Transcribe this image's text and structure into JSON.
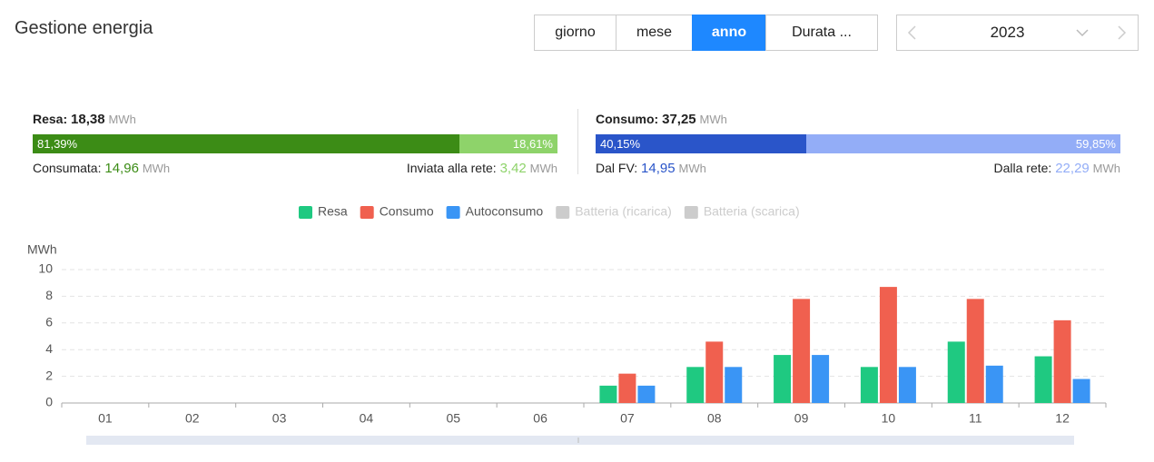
{
  "header": {
    "title": "Gestione energia",
    "tabs": [
      {
        "label": "giorno"
      },
      {
        "label": "mese"
      },
      {
        "label": "anno",
        "selected": true
      },
      {
        "label": "Durata ..."
      }
    ],
    "year": "2023"
  },
  "summary": [
    {
      "title": "Resa:",
      "amount": "18,38",
      "unit": "MWh",
      "segments": [
        {
          "value": 81.39,
          "label": "81,39%",
          "color": "#3c8c16"
        },
        {
          "value": 18.61,
          "label": "18,61%",
          "color": "#8ed36a"
        }
      ],
      "left": {
        "label": "Consumata:",
        "amount": "14,96",
        "unit": "MWh"
      },
      "right": {
        "label": "Inviata alla rete:",
        "amount": "3,42",
        "unit": "MWh"
      }
    },
    {
      "title": "Consumo:",
      "amount": "37,25",
      "unit": "MWh",
      "segments": [
        {
          "value": 40.15,
          "label": "40,15%",
          "color": "#2a55c9"
        },
        {
          "value": 59.85,
          "label": "59,85%",
          "color": "#93adf7"
        }
      ],
      "left": {
        "label": "Dal FV:",
        "amount": "14,95",
        "unit": "MWh"
      },
      "right": {
        "label": "Dalla rete:",
        "amount": "22,29",
        "unit": "MWh"
      }
    }
  ],
  "chart_data": {
    "type": "bar",
    "y_label": "MWh",
    "categories": [
      "01",
      "02",
      "03",
      "04",
      "05",
      "06",
      "07",
      "08",
      "09",
      "10",
      "11",
      "12"
    ],
    "series": [
      {
        "name": "Resa",
        "color": "#1fc981",
        "values": [
          0,
          0,
          0,
          0,
          0,
          0,
          1.3,
          2.7,
          3.6,
          2.7,
          4.6,
          3.5
        ]
      },
      {
        "name": "Consumo",
        "color": "#f0604f",
        "values": [
          0,
          0,
          0,
          0,
          0,
          0,
          2.2,
          4.6,
          7.8,
          8.7,
          7.8,
          6.2
        ]
      },
      {
        "name": "Autoconsumo",
        "color": "#3a95f5",
        "values": [
          0,
          0,
          0,
          0,
          0,
          0,
          1.3,
          2.7,
          3.6,
          2.7,
          2.8,
          1.8
        ]
      },
      {
        "name": "Batteria (ricarica)",
        "visible": false,
        "values": [
          null,
          null,
          null,
          null,
          null,
          null,
          null,
          null,
          null,
          null,
          null,
          null
        ]
      },
      {
        "name": "Batteria (scarica)",
        "visible": false,
        "values": [
          null,
          null,
          null,
          null,
          null,
          null,
          null,
          null,
          null,
          null,
          null,
          null
        ]
      }
    ],
    "ylim": [
      0,
      10
    ],
    "yticks": [
      0,
      2,
      4,
      6,
      8,
      10
    ],
    "grid": true,
    "legend": "top"
  }
}
